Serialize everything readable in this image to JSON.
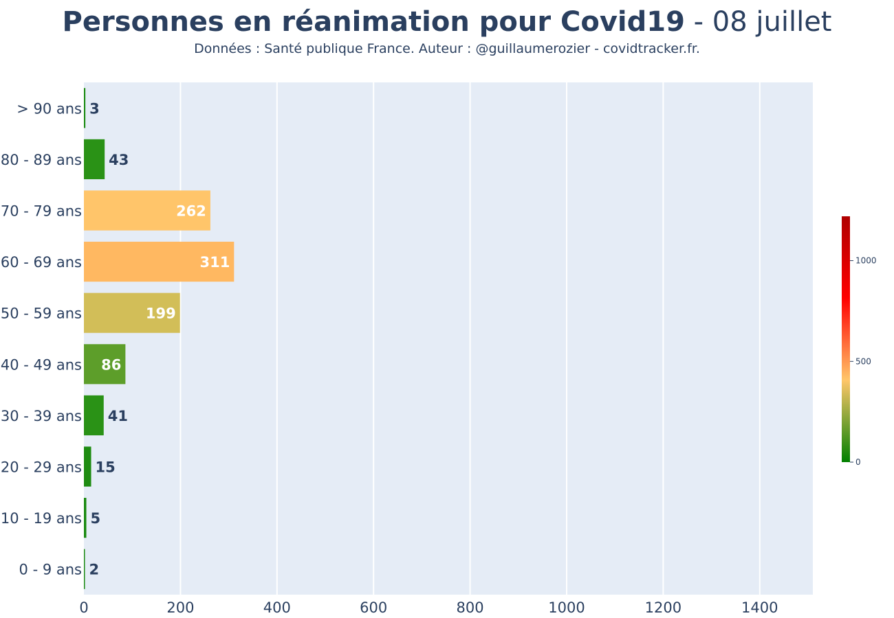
{
  "chart_data": {
    "type": "bar",
    "orientation": "horizontal",
    "title_bold": "Personnes en réanimation pour Covid19",
    "title_rest": " - 08 juillet",
    "subtitle": "Données : Santé publique France. Auteur : @guillaumerozier - covidtracker.fr.",
    "categories": [
      "0 - 9 ans",
      "10 - 19 ans",
      "20 - 29 ans",
      "30 - 39 ans",
      "40 - 49 ans",
      "50 - 59 ans",
      "60 - 69 ans",
      "70 - 79 ans",
      "80 - 89 ans",
      "> 90 ans"
    ],
    "values": [
      2,
      5,
      15,
      41,
      86,
      199,
      311,
      262,
      43,
      3
    ],
    "bar_colors": [
      "#1a8a10",
      "#1a8a10",
      "#1f8c12",
      "#2a9216",
      "#5d9e2a",
      "#d2be58",
      "#ffb861",
      "#ffc56a",
      "#2a9216",
      "#1a8a10"
    ],
    "label_colors": [
      "#2a3f5f",
      "#2a3f5f",
      "#2a3f5f",
      "#2a3f5f",
      "#ffffff",
      "#ffffff",
      "#ffffff",
      "#ffffff",
      "#2a3f5f",
      "#2a3f5f"
    ],
    "xlim": [
      0,
      1510
    ],
    "x_ticks": [
      0,
      200,
      400,
      600,
      800,
      1000,
      1200,
      1400
    ],
    "grid": true,
    "plot_background": "#e5ecf6",
    "colorbar": {
      "ticks": [
        0,
        500,
        1000
      ],
      "range": [
        0,
        1220
      ],
      "colors": [
        "#008000",
        "#ffc66a",
        "#ff0000",
        "#b00000"
      ]
    }
  }
}
